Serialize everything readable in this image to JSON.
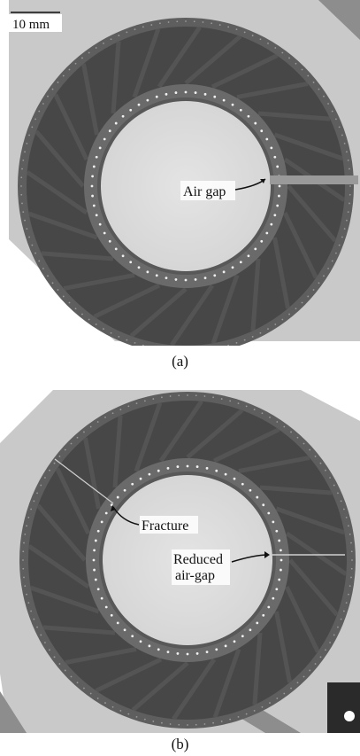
{
  "scale_bar": {
    "label": "10 mm"
  },
  "panel_a": {
    "caption": "(a)",
    "annotation": "Air gap"
  },
  "panel_b": {
    "caption": "(b)",
    "annotation_fracture": "Fracture",
    "annotation_gap_line1": "Reduced",
    "annotation_gap_line2": "air-gap"
  },
  "colors": {
    "background_gray": "#c9c9c9",
    "ring_dark": "#454545",
    "ring_mid": "#6f6f6f",
    "inner_disc": "#dedede"
  }
}
